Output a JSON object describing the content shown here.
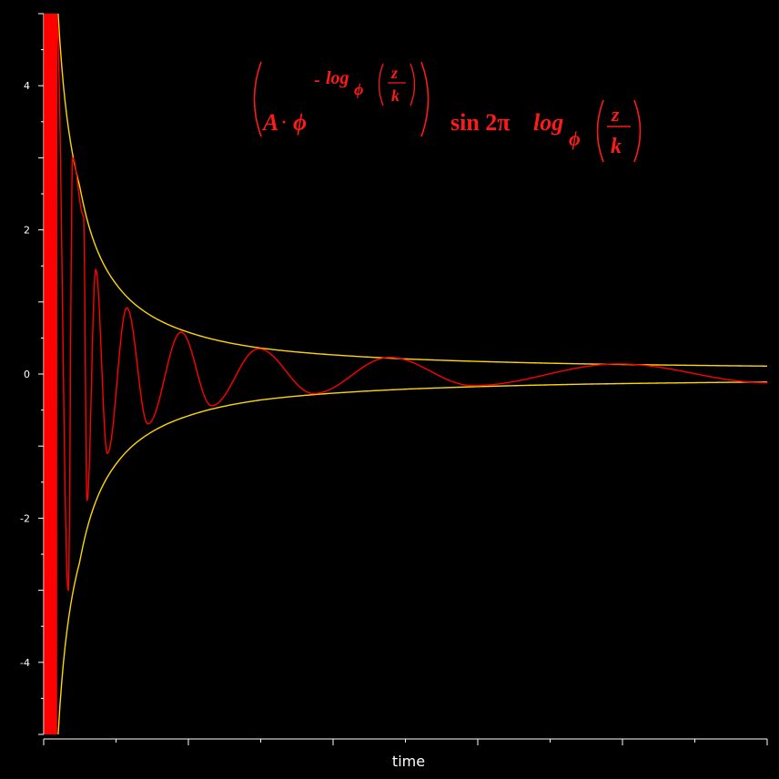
{
  "chart_data": {
    "type": "line",
    "title": "",
    "xlabel": "time",
    "ylabel": "",
    "ylim": [
      -5,
      5
    ],
    "yticks": [
      4,
      2,
      0,
      -2,
      -4
    ],
    "ytick_labels": [
      "4",
      "2",
      "0",
      "-2",
      "-4"
    ],
    "grid": false,
    "legend": "none",
    "formula": {
      "amp": "A",
      "dot": "·",
      "base": "ϕ",
      "exp_minus": "-",
      "log": "log",
      "log_base": "ϕ",
      "frac_num": "z",
      "frac_den": "k",
      "sin": "sin 2π"
    },
    "series": [
      {
        "role": "signal",
        "color": "#ff0000",
        "peaks": [
          {
            "x": 0.018,
            "y": 4.9
          },
          {
            "x": 0.04,
            "y": 3.0
          },
          {
            "x": 0.055,
            "y": 2.2
          },
          {
            "x": 0.072,
            "y": 1.45
          },
          {
            "x": 0.115,
            "y": 0.92
          },
          {
            "x": 0.19,
            "y": 0.58
          },
          {
            "x": 0.297,
            "y": 0.35
          },
          {
            "x": 0.478,
            "y": 0.23
          },
          {
            "x": 0.795,
            "y": 0.14
          }
        ],
        "troughs": [
          {
            "x": 0.034,
            "y": -3.0
          },
          {
            "x": 0.06,
            "y": -1.75
          },
          {
            "x": 0.088,
            "y": -1.1
          },
          {
            "x": 0.144,
            "y": -0.69
          },
          {
            "x": 0.232,
            "y": -0.44
          },
          {
            "x": 0.373,
            "y": -0.27
          },
          {
            "x": 0.593,
            "y": -0.16
          },
          {
            "x": 1.0,
            "y": -0.12
          }
        ]
      },
      {
        "role": "upper-envelope",
        "color": "#ffd700",
        "points": [
          [
            0.02,
            5.0
          ],
          [
            0.05,
            2.6
          ],
          [
            0.1,
            1.25
          ],
          [
            0.15,
            0.8
          ],
          [
            0.2,
            0.58
          ],
          [
            0.3,
            0.36
          ],
          [
            0.5,
            0.21
          ],
          [
            0.75,
            0.14
          ],
          [
            1.0,
            0.11
          ]
        ]
      },
      {
        "role": "lower-envelope",
        "color": "#ffd700",
        "points": [
          [
            0.02,
            -5.0
          ],
          [
            0.05,
            -2.6
          ],
          [
            0.1,
            -1.25
          ],
          [
            0.15,
            -0.8
          ],
          [
            0.2,
            -0.58
          ],
          [
            0.3,
            -0.36
          ],
          [
            0.5,
            -0.21
          ],
          [
            0.75,
            -0.14
          ],
          [
            1.0,
            -0.11
          ]
        ]
      }
    ]
  }
}
